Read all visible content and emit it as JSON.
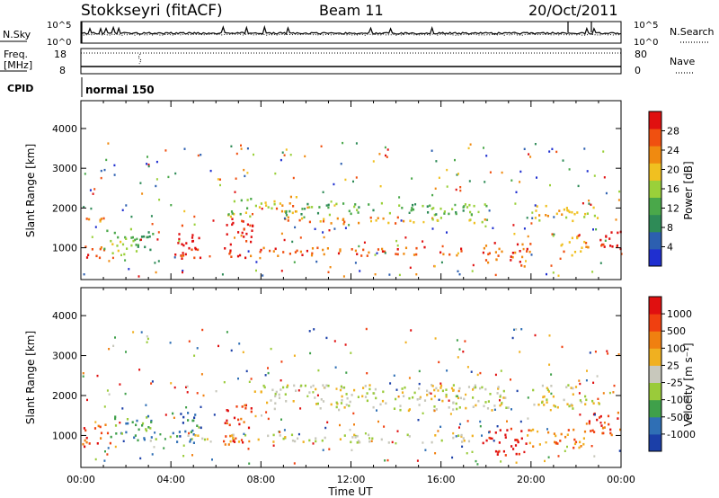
{
  "header": {
    "station": "Stokkseyri (fitACF)",
    "beam": "Beam 11",
    "date": "20/Oct/2011"
  },
  "strip_labels": {
    "nsky": "N.Sky",
    "nsky_ticks": [
      "10^5",
      "10^0"
    ],
    "nsearch": "N.Search",
    "nsearch_ticks": [
      "10^5",
      "10^0"
    ],
    "freq_line1": "Freq.",
    "freq_line2": "[MHz]",
    "freq_ticks": [
      "18",
      "8"
    ],
    "nave": "Nave",
    "nave_ticks": [
      "80",
      "0"
    ],
    "cpid": "CPID",
    "cpid_mode": "normal 150"
  },
  "colors": {
    "power_scale": [
      "#1f2fd0",
      "#2c5fb0",
      "#2e8b57",
      "#4aa84a",
      "#9ad03a",
      "#f0c020",
      "#f08a10",
      "#f05010",
      "#e01010"
    ],
    "velocity_scale": [
      "#1b3fa8",
      "#2f6fb5",
      "#3fa04a",
      "#9acb3a",
      "#c8c8bc",
      "#f0b020",
      "#f08010",
      "#f04010",
      "#e01010"
    ]
  },
  "chart_data": [
    {
      "type": "heatmap",
      "name": "power",
      "ylabel": "Slant Range [km]",
      "yticks": [
        "4000",
        "3000",
        "2000",
        "1000"
      ],
      "ylim": [
        200,
        4700
      ],
      "x_range_hours": [
        0,
        24
      ],
      "colorbar_label": "Power [dB]",
      "colorbar_ticks": [
        "28",
        "24",
        "20",
        "16",
        "12",
        "8",
        "4"
      ],
      "colorbar_range": [
        0,
        32
      ],
      "echo_bands": [
        {
          "t0": 0.0,
          "t1": 1.0,
          "r0": 700,
          "r1": 1100,
          "level": 7
        },
        {
          "t0": 0.0,
          "t1": 1.0,
          "r0": 1650,
          "r1": 1900,
          "level": 6
        },
        {
          "t0": 1.0,
          "t1": 2.5,
          "r0": 800,
          "r1": 1500,
          "level": 4
        },
        {
          "t0": 2.5,
          "t1": 3.3,
          "r0": 900,
          "r1": 1500,
          "level": 2
        },
        {
          "t0": 4.0,
          "t1": 5.3,
          "r0": 750,
          "r1": 1600,
          "level": 8
        },
        {
          "t0": 6.3,
          "t1": 7.6,
          "r0": 750,
          "r1": 1800,
          "level": 8
        },
        {
          "t0": 6.5,
          "t1": 8.6,
          "r0": 1800,
          "r1": 2300,
          "level": 4
        },
        {
          "t0": 8.6,
          "t1": 9.6,
          "r0": 1900,
          "r1": 2400,
          "level": 6
        },
        {
          "t0": 9.0,
          "t1": 14.5,
          "r0": 1600,
          "r1": 1800,
          "level": 6
        },
        {
          "t0": 14.5,
          "t1": 18.0,
          "r0": 1650,
          "r1": 1800,
          "level": 5
        },
        {
          "t0": 9.0,
          "t1": 18.0,
          "r0": 1850,
          "r1": 2150,
          "level": 3
        },
        {
          "t0": 7.5,
          "t1": 17.5,
          "r0": 820,
          "r1": 1050,
          "level": 7
        },
        {
          "t0": 17.8,
          "t1": 20.0,
          "r0": 550,
          "r1": 1150,
          "level": 7
        },
        {
          "t0": 20.0,
          "t1": 23.0,
          "r0": 1700,
          "r1": 2100,
          "level": 5
        },
        {
          "t0": 21.3,
          "t1": 22.6,
          "r0": 800,
          "r1": 1350,
          "level": 6
        },
        {
          "t0": 23.0,
          "t1": 24.0,
          "r0": 800,
          "r1": 1500,
          "level": 8
        }
      ]
    },
    {
      "type": "heatmap",
      "name": "velocity",
      "ylabel": "Slant Range [km]",
      "yticks": [
        "4000",
        "3000",
        "2000",
        "1000"
      ],
      "ylim": [
        200,
        4700
      ],
      "x_range_hours": [
        0,
        24
      ],
      "xlabel": "Time UT",
      "xticks": [
        "00:00",
        "04:00",
        "08:00",
        "12:00",
        "16:00",
        "20:00",
        "00:00"
      ],
      "colorbar_label": "Velocity [m s⁻¹]",
      "colorbar_ticks": [
        "1000",
        "500",
        "100",
        "25",
        "-25",
        "-100",
        "-500",
        "-1000"
      ],
      "echo_bands": [
        {
          "t0": 0.0,
          "t1": 1.3,
          "r0": 700,
          "r1": 1300,
          "level": 7
        },
        {
          "t0": 1.3,
          "t1": 3.3,
          "r0": 900,
          "r1": 1600,
          "level": 2
        },
        {
          "t0": 4.0,
          "t1": 5.3,
          "r0": 800,
          "r1": 1600,
          "level": 1
        },
        {
          "t0": 6.3,
          "t1": 7.6,
          "r0": 800,
          "r1": 1800,
          "level": 7
        },
        {
          "t0": 7.6,
          "t1": 19.0,
          "r0": 1650,
          "r1": 2300,
          "level": 4
        },
        {
          "t0": 3.0,
          "t1": 17.5,
          "r0": 850,
          "r1": 1050,
          "level": 4
        },
        {
          "t0": 17.8,
          "t1": 19.8,
          "r0": 500,
          "r1": 1200,
          "level": 8
        },
        {
          "t0": 19.8,
          "t1": 22.5,
          "r0": 700,
          "r1": 1200,
          "level": 6
        },
        {
          "t0": 20.0,
          "t1": 23.0,
          "r0": 1700,
          "r1": 2300,
          "level": 4
        },
        {
          "t0": 22.5,
          "t1": 24.0,
          "r0": 900,
          "r1": 1600,
          "level": 7
        }
      ]
    }
  ]
}
